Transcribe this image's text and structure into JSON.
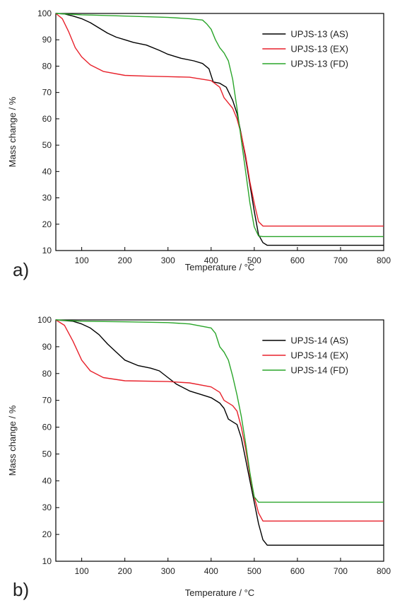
{
  "chart_data": [
    {
      "type": "line",
      "panel_label": "a)",
      "xlabel": "Temperature / °C",
      "ylabel": "Mass change / %",
      "xlim": [
        40,
        800
      ],
      "ylim": [
        10,
        100
      ],
      "x_ticks": [
        100,
        200,
        300,
        400,
        500,
        600,
        700,
        800
      ],
      "y_ticks": [
        10,
        20,
        30,
        40,
        50,
        60,
        70,
        80,
        90,
        100
      ],
      "grid": false,
      "legend_position": "top-right",
      "series": [
        {
          "name": "UPJS-13 (AS)",
          "color": "#000000",
          "x": [
            40,
            60,
            80,
            100,
            120,
            140,
            160,
            180,
            200,
            220,
            250,
            280,
            300,
            330,
            360,
            380,
            395,
            405,
            420,
            435,
            450,
            460,
            470,
            480,
            490,
            500,
            510,
            520,
            530,
            600,
            700,
            800
          ],
          "y": [
            100,
            99.8,
            99,
            98,
            96.5,
            94.5,
            92.5,
            91,
            90,
            89,
            88,
            86,
            84.5,
            83,
            82,
            81,
            79,
            74,
            73.5,
            72,
            67,
            62,
            54,
            45,
            35,
            25,
            16,
            13,
            12,
            12,
            12,
            12
          ]
        },
        {
          "name": "UPJS-13 (EX)",
          "color": "#e8212b",
          "x": [
            40,
            55,
            70,
            85,
            100,
            120,
            150,
            200,
            250,
            300,
            350,
            400,
            420,
            430,
            440,
            450,
            460,
            470,
            480,
            490,
            500,
            510,
            520,
            600,
            700,
            800
          ],
          "y": [
            100,
            98,
            93,
            87,
            83.5,
            80.5,
            78,
            76.5,
            76.2,
            76,
            75.8,
            74.5,
            72,
            68,
            66,
            64,
            60,
            54,
            46,
            36,
            28,
            21,
            19.3,
            19.3,
            19.3,
            19.3
          ]
        },
        {
          "name": "UPJS-13 (FD)",
          "color": "#2aa52a",
          "x": [
            40,
            100,
            200,
            300,
            350,
            380,
            390,
            400,
            410,
            420,
            430,
            440,
            450,
            460,
            470,
            480,
            490,
            500,
            510,
            520,
            600,
            700,
            800
          ],
          "y": [
            100,
            99.5,
            99,
            98.5,
            98,
            97.5,
            96,
            94,
            90,
            87,
            85,
            82,
            75,
            64,
            52,
            40,
            28,
            19,
            15.5,
            15.3,
            15.3,
            15.3,
            15.3
          ]
        }
      ]
    },
    {
      "type": "line",
      "panel_label": "b)",
      "xlabel": "Temperature / °C",
      "ylabel": "Mass change / %",
      "xlim": [
        40,
        800
      ],
      "ylim": [
        10,
        100
      ],
      "x_ticks": [
        100,
        200,
        300,
        400,
        500,
        600,
        700,
        800
      ],
      "y_ticks": [
        10,
        20,
        30,
        40,
        50,
        60,
        70,
        80,
        90,
        100
      ],
      "grid": false,
      "legend_position": "top-right",
      "series": [
        {
          "name": "UPJS-14 (AS)",
          "color": "#000000",
          "x": [
            40,
            80,
            100,
            120,
            140,
            160,
            180,
            200,
            230,
            260,
            280,
            300,
            320,
            350,
            380,
            400,
            420,
            430,
            440,
            460,
            470,
            480,
            490,
            500,
            510,
            520,
            530,
            600,
            700,
            800
          ],
          "y": [
            100,
            99.5,
            98.5,
            97,
            94.5,
            91,
            88,
            85,
            83,
            82,
            81,
            78.5,
            76,
            73.5,
            72,
            71,
            69,
            67,
            63,
            61,
            56,
            48,
            40,
            32,
            24,
            18,
            16,
            16,
            16,
            16
          ]
        },
        {
          "name": "UPJS-14 (EX)",
          "color": "#e8212b",
          "x": [
            40,
            60,
            80,
            100,
            120,
            150,
            200,
            300,
            350,
            400,
            420,
            430,
            450,
            460,
            470,
            480,
            490,
            500,
            510,
            520,
            600,
            700,
            800
          ],
          "y": [
            100,
            98,
            92,
            85,
            81,
            78.5,
            77.3,
            77,
            76.5,
            75,
            73,
            70,
            68,
            66,
            60,
            52,
            42,
            34,
            28,
            25,
            25,
            25,
            25
          ]
        },
        {
          "name": "UPJS-14 (FD)",
          "color": "#2aa52a",
          "x": [
            40,
            100,
            200,
            300,
            350,
            400,
            410,
            420,
            430,
            440,
            450,
            460,
            470,
            480,
            490,
            500,
            510,
            600,
            700,
            800
          ],
          "y": [
            100,
            99.5,
            99.3,
            99,
            98.5,
            97,
            95,
            90,
            88,
            85,
            79,
            72,
            64,
            54,
            43,
            34,
            32,
            32,
            32,
            32
          ]
        }
      ]
    }
  ]
}
